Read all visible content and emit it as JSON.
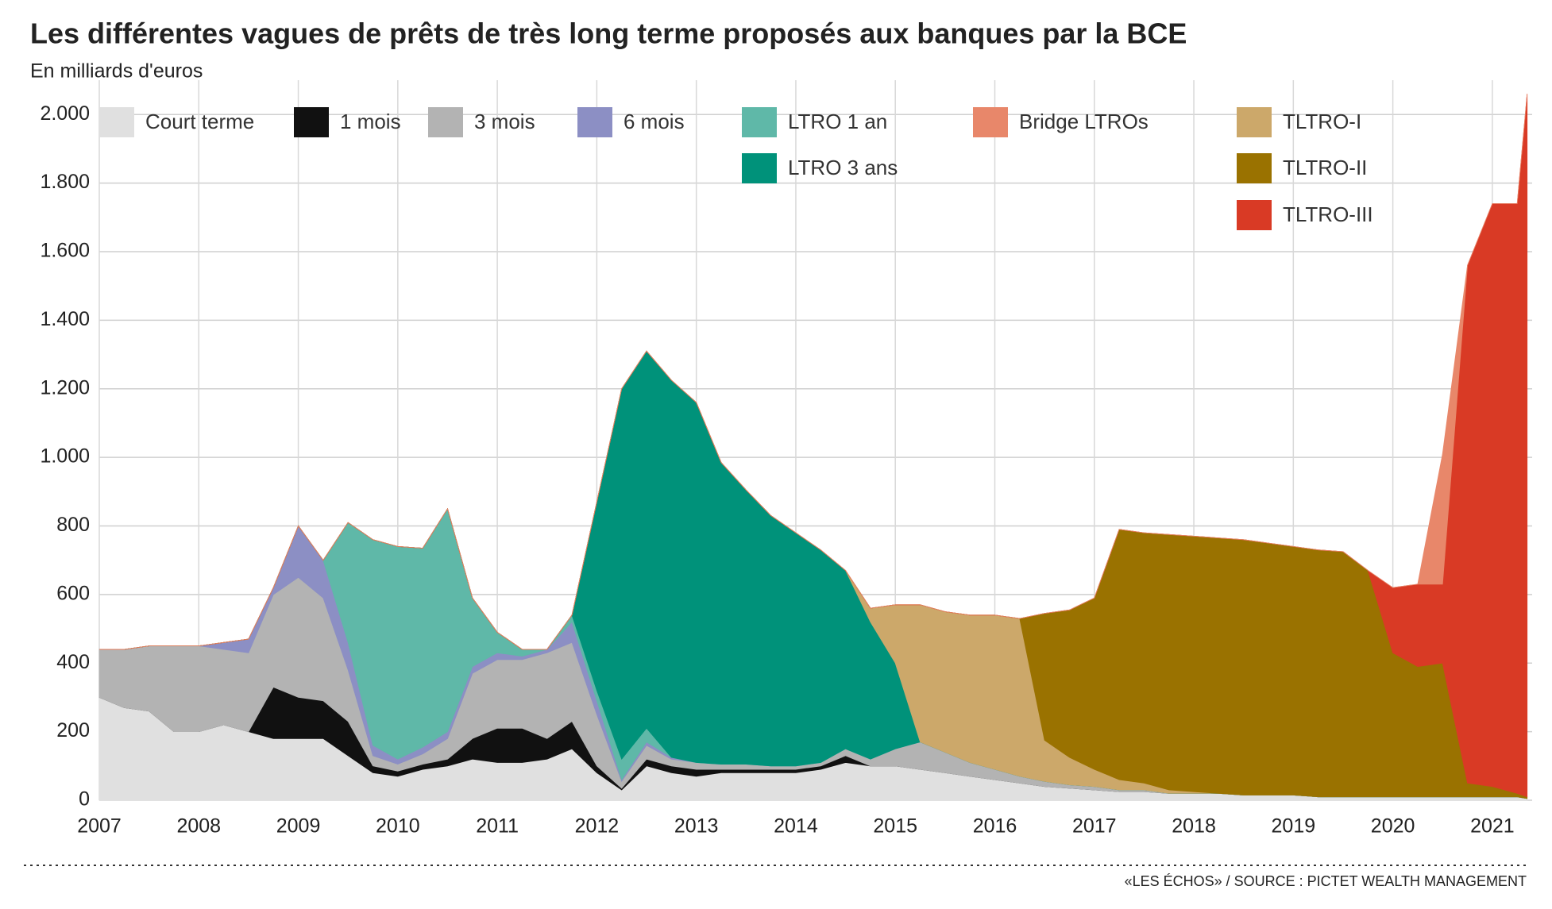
{
  "chart_data": {
    "type": "stacked_area",
    "title": "Les différentes vagues de prêts de très long terme proposés aux banques par la BCE",
    "subtitle": "En milliards d'euros",
    "source": "«LES ÉCHOS» / SOURCE : PICTET WEALTH MANAGEMENT",
    "x": [
      2007,
      2007.25,
      2007.5,
      2007.75,
      2008,
      2008.25,
      2008.5,
      2008.75,
      2009,
      2009.25,
      2009.5,
      2009.75,
      2010,
      2010.25,
      2010.5,
      2010.75,
      2011,
      2011.25,
      2011.5,
      2011.75,
      2012,
      2012.25,
      2012.5,
      2012.75,
      2013,
      2013.25,
      2013.5,
      2013.75,
      2014,
      2014.25,
      2014.5,
      2014.75,
      2015,
      2015.25,
      2015.5,
      2015.75,
      2016,
      2016.25,
      2016.5,
      2016.75,
      2017,
      2017.25,
      2017.5,
      2017.75,
      2018,
      2018.25,
      2018.5,
      2018.75,
      2019,
      2019.25,
      2019.5,
      2019.75,
      2020,
      2020.25,
      2020.5,
      2020.75,
      2021,
      2021.25,
      2021.35
    ],
    "xlim": [
      2007,
      2021.4
    ],
    "xticks": [
      2007,
      2008,
      2009,
      2010,
      2011,
      2012,
      2013,
      2014,
      2015,
      2016,
      2017,
      2018,
      2019,
      2020,
      2021
    ],
    "ylim": [
      0,
      2100
    ],
    "yticks": [
      0,
      200,
      400,
      600,
      800,
      {
        "value": 1000,
        "label": "1.000"
      },
      {
        "value": 1200,
        "label": "1.200"
      },
      {
        "value": 1400,
        "label": "1.400"
      },
      {
        "value": 1600,
        "label": "1.600"
      },
      {
        "value": 1800,
        "label": "1.800"
      },
      {
        "value": 2000,
        "label": "2.000"
      }
    ],
    "grid": true,
    "series": [
      {
        "name": "Court terme",
        "color": "#e0e0e0",
        "values": [
          300,
          270,
          260,
          200,
          200,
          220,
          200,
          180,
          180,
          180,
          130,
          80,
          70,
          90,
          100,
          120,
          110,
          110,
          120,
          150,
          80,
          30,
          100,
          80,
          70,
          80,
          80,
          80,
          80,
          90,
          110,
          100,
          100,
          90,
          80,
          70,
          60,
          50,
          40,
          35,
          30,
          25,
          25,
          20,
          20,
          20,
          15,
          15,
          15,
          10,
          10,
          10,
          10,
          10,
          10,
          10,
          10,
          10,
          5
        ]
      },
      {
        "name": "1 mois",
        "color": "#111111",
        "values": [
          0,
          0,
          0,
          0,
          0,
          0,
          0,
          150,
          120,
          110,
          100,
          20,
          15,
          15,
          20,
          60,
          100,
          100,
          60,
          80,
          20,
          5,
          20,
          20,
          20,
          10,
          10,
          10,
          10,
          10,
          20,
          0,
          0,
          0,
          0,
          0,
          0,
          0,
          0,
          0,
          0,
          0,
          0,
          0,
          0,
          0,
          0,
          0,
          0,
          0,
          0,
          0,
          0,
          0,
          0,
          0,
          0,
          0,
          0
        ]
      },
      {
        "name": "3 mois",
        "color": "#b3b3b3",
        "values": [
          140,
          170,
          190,
          250,
          250,
          220,
          230,
          270,
          350,
          300,
          150,
          30,
          20,
          30,
          60,
          190,
          200,
          200,
          250,
          230,
          150,
          20,
          40,
          20,
          20,
          15,
          15,
          10,
          10,
          10,
          20,
          20,
          50,
          80,
          60,
          40,
          30,
          20,
          15,
          10,
          10,
          5,
          5,
          0,
          0,
          0,
          0,
          0,
          0,
          0,
          0,
          0,
          0,
          0,
          0,
          0,
          0,
          0,
          0
        ]
      },
      {
        "name": "6 mois",
        "color": "#8c8fc4",
        "values": [
          0,
          0,
          0,
          0,
          0,
          20,
          40,
          20,
          150,
          110,
          80,
          30,
          15,
          20,
          20,
          20,
          20,
          10,
          10,
          60,
          40,
          5,
          10,
          5,
          0,
          0,
          0,
          0,
          0,
          0,
          0,
          0,
          0,
          0,
          0,
          0,
          0,
          0,
          0,
          0,
          0,
          0,
          0,
          0,
          0,
          0,
          0,
          0,
          0,
          0,
          0,
          0,
          0,
          0,
          0,
          0,
          0,
          0,
          0
        ]
      },
      {
        "name": "LTRO 1 an",
        "color": "#5fb8a8",
        "values": [
          0,
          0,
          0,
          0,
          0,
          0,
          0,
          0,
          0,
          0,
          350,
          600,
          620,
          580,
          650,
          200,
          60,
          20,
          0,
          20,
          30,
          60,
          40,
          0,
          0,
          0,
          0,
          0,
          0,
          0,
          0,
          0,
          0,
          0,
          0,
          0,
          0,
          0,
          0,
          0,
          0,
          0,
          0,
          0,
          0,
          0,
          0,
          0,
          0,
          0,
          0,
          0,
          0,
          0,
          0,
          0,
          0,
          0,
          0
        ]
      },
      {
        "name": "LTRO 3 ans",
        "color": "#00927a",
        "values": [
          0,
          0,
          0,
          0,
          0,
          0,
          0,
          0,
          0,
          0,
          0,
          0,
          0,
          0,
          0,
          0,
          0,
          0,
          0,
          0,
          550,
          1080,
          1100,
          1100,
          1050,
          880,
          800,
          730,
          680,
          620,
          520,
          400,
          250,
          0,
          0,
          0,
          0,
          0,
          0,
          0,
          0,
          0,
          0,
          0,
          0,
          0,
          0,
          0,
          0,
          0,
          0,
          0,
          0,
          0,
          0,
          0,
          0,
          0,
          0
        ]
      },
      {
        "name": "TLTRO-I",
        "color": "#cca86a",
        "values": [
          0,
          0,
          0,
          0,
          0,
          0,
          0,
          0,
          0,
          0,
          0,
          0,
          0,
          0,
          0,
          0,
          0,
          0,
          0,
          0,
          0,
          0,
          0,
          0,
          0,
          0,
          0,
          0,
          0,
          0,
          0,
          40,
          170,
          400,
          410,
          430,
          450,
          460,
          120,
          80,
          50,
          30,
          20,
          10,
          5,
          0,
          0,
          0,
          0,
          0,
          0,
          0,
          0,
          0,
          0,
          0,
          0,
          0,
          0
        ]
      },
      {
        "name": "TLTRO-II",
        "color": "#9a7200",
        "values": [
          0,
          0,
          0,
          0,
          0,
          0,
          0,
          0,
          0,
          0,
          0,
          0,
          0,
          0,
          0,
          0,
          0,
          0,
          0,
          0,
          0,
          0,
          0,
          0,
          0,
          0,
          0,
          0,
          0,
          0,
          0,
          0,
          0,
          0,
          0,
          0,
          0,
          0,
          370,
          430,
          500,
          730,
          730,
          745,
          745,
          745,
          745,
          735,
          725,
          720,
          715,
          660,
          420,
          380,
          390,
          40,
          30,
          10,
          5
        ]
      },
      {
        "name": "TLTRO-III",
        "color": "#d93a25",
        "values": [
          0,
          0,
          0,
          0,
          0,
          0,
          0,
          0,
          0,
          0,
          0,
          0,
          0,
          0,
          0,
          0,
          0,
          0,
          0,
          0,
          0,
          0,
          0,
          0,
          0,
          0,
          0,
          0,
          0,
          0,
          0,
          0,
          0,
          0,
          0,
          0,
          0,
          0,
          0,
          0,
          0,
          0,
          0,
          0,
          0,
          0,
          0,
          0,
          0,
          0,
          0,
          0,
          190,
          240,
          230,
          1510,
          1700,
          1720,
          2050
        ]
      },
      {
        "name": "Bridge LTROs",
        "color": "#e8876a",
        "values": [
          0,
          0,
          0,
          0,
          0,
          0,
          0,
          0,
          0,
          0,
          0,
          0,
          0,
          0,
          0,
          0,
          0,
          0,
          0,
          0,
          0,
          0,
          0,
          0,
          0,
          0,
          0,
          0,
          0,
          0,
          0,
          0,
          0,
          0,
          0,
          0,
          0,
          0,
          0,
          0,
          0,
          0,
          0,
          0,
          0,
          0,
          0,
          0,
          0,
          0,
          0,
          0,
          0,
          0,
          380,
          0,
          0,
          0,
          0
        ]
      }
    ]
  }
}
